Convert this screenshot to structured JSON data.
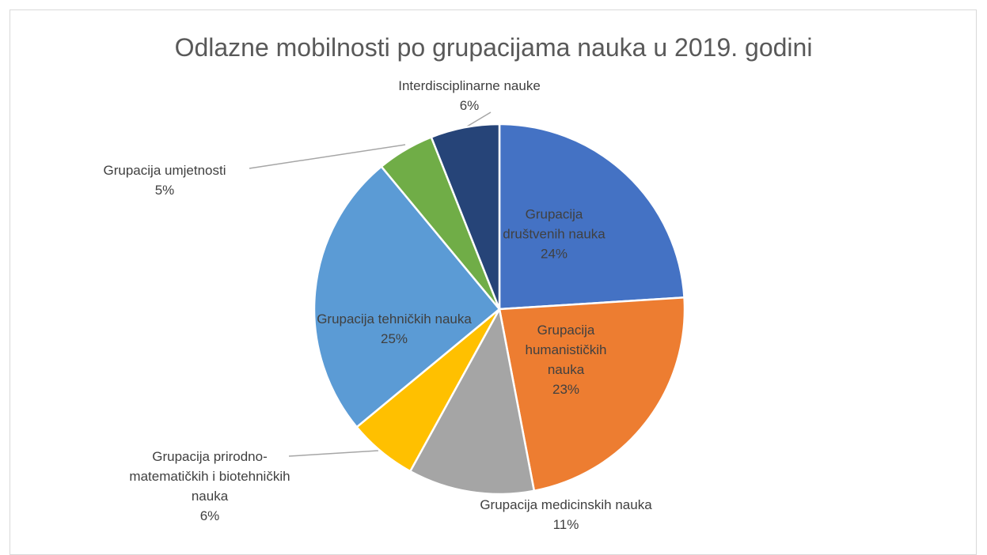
{
  "chart_data": {
    "type": "pie",
    "title": "Odlazne mobilnosti po grupacijama nauka u 2019. godini",
    "categories": [
      "Grupacija društvenih nauka",
      "Grupacija humanističkih nauka",
      "Grupacija medicinskih nauka",
      "Grupacija prirodno-matematičkih i biotehničkih nauka",
      "Grupacija tehničkih nauka",
      "Grupacija umjetnosti",
      "Interdisciplinarne nauke"
    ],
    "values": [
      24,
      23,
      11,
      6,
      25,
      5,
      6
    ],
    "value_labels": [
      "24%",
      "23%",
      "11%",
      "6%",
      "25%",
      "5%",
      "6%"
    ],
    "colors": [
      "#4472c4",
      "#ed7d31",
      "#a5a5a5",
      "#ffc000",
      "#5b9bd5",
      "#70ad47",
      "#264478"
    ]
  }
}
